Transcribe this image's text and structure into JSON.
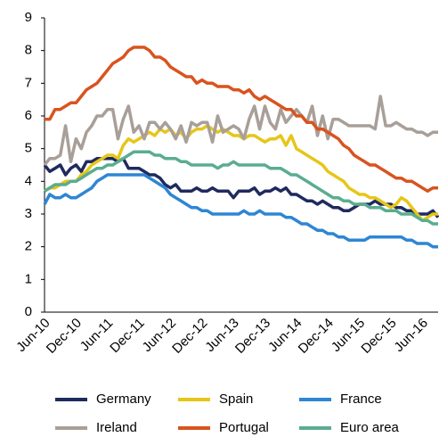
{
  "chart_data": {
    "type": "line",
    "categories": [
      "Jun-10",
      null,
      null,
      null,
      null,
      null,
      "Dec-10",
      null,
      null,
      null,
      null,
      null,
      "Jun-11",
      null,
      null,
      null,
      null,
      null,
      "Dec-11",
      null,
      null,
      null,
      null,
      null,
      "Jun-12",
      null,
      null,
      null,
      null,
      null,
      "Dec-12",
      null,
      null,
      null,
      null,
      null,
      "Jun-13",
      null,
      null,
      null,
      null,
      null,
      "Dec-13",
      null,
      null,
      null,
      null,
      null,
      "Jun-14",
      null,
      null,
      null,
      null,
      null,
      "Dec-14",
      null,
      null,
      null,
      null,
      null,
      "Jun-15",
      null,
      null,
      null,
      null,
      null,
      "Dec-15",
      null,
      null,
      null,
      null,
      null,
      "Jun-16",
      null,
      null,
      null
    ],
    "series": [
      {
        "name": "Germany",
        "color": "#1f2a5e",
        "values": [
          4.5,
          4.3,
          4.4,
          4.5,
          4.2,
          4.4,
          4.5,
          4.3,
          4.6,
          4.6,
          4.7,
          4.7,
          4.7,
          4.7,
          4.6,
          4.7,
          4.4,
          4.4,
          4.4,
          4.3,
          4.2,
          4.2,
          4.1,
          3.9,
          3.8,
          3.9,
          3.7,
          3.7,
          3.7,
          3.8,
          3.7,
          3.7,
          3.8,
          3.7,
          3.7,
          3.7,
          3.5,
          3.7,
          3.7,
          3.7,
          3.8,
          3.6,
          3.7,
          3.7,
          3.8,
          3.7,
          3.8,
          3.6,
          3.6,
          3.5,
          3.4,
          3.4,
          3.3,
          3.4,
          3.3,
          3.2,
          3.2,
          3.1,
          3.1,
          3.2,
          3.3,
          3.3,
          3.3,
          3.4,
          3.3,
          3.3,
          3.3,
          3.2,
          3.2,
          3.1,
          3.1,
          3.0,
          3.0,
          3.0,
          3.1,
          2.9
        ]
      },
      {
        "name": "Spain",
        "color": "#e6c619",
        "values": [
          3.7,
          3.8,
          3.8,
          3.9,
          4.0,
          4.0,
          4.0,
          4.2,
          4.3,
          4.5,
          4.6,
          4.7,
          4.8,
          4.8,
          4.7,
          5.1,
          5.3,
          5.2,
          5.3,
          5.4,
          5.5,
          5.4,
          5.6,
          5.5,
          5.6,
          5.4,
          5.5,
          5.3,
          5.5,
          5.6,
          5.6,
          5.7,
          5.6,
          5.5,
          5.6,
          5.5,
          5.4,
          5.4,
          5.3,
          5.4,
          5.4,
          5.3,
          5.2,
          5.3,
          5.3,
          5.4,
          5.1,
          5.4,
          5.0,
          4.9,
          4.8,
          4.7,
          4.6,
          4.5,
          4.3,
          4.2,
          4.1,
          4.0,
          3.8,
          3.7,
          3.6,
          3.6,
          3.5,
          3.5,
          3.4,
          3.3,
          3.2,
          3.3,
          3.5,
          3.4,
          3.2,
          3.0,
          2.8,
          2.9,
          3.0,
          3.0
        ]
      },
      {
        "name": "France",
        "color": "#2e86d4",
        "values": [
          3.3,
          3.6,
          3.5,
          3.5,
          3.6,
          3.5,
          3.5,
          3.6,
          3.7,
          3.8,
          4.0,
          4.1,
          4.2,
          4.2,
          4.2,
          4.2,
          4.2,
          4.2,
          4.2,
          4.2,
          4.1,
          4.0,
          3.9,
          3.8,
          3.6,
          3.5,
          3.4,
          3.3,
          3.2,
          3.2,
          3.1,
          3.1,
          3.0,
          3.0,
          3.0,
          3.0,
          3.0,
          3.0,
          3.1,
          3.0,
          3.0,
          3.1,
          3.0,
          3.0,
          3.0,
          3.0,
          2.9,
          2.9,
          2.8,
          2.7,
          2.7,
          2.6,
          2.5,
          2.5,
          2.4,
          2.4,
          2.3,
          2.3,
          2.2,
          2.2,
          2.2,
          2.2,
          2.3,
          2.3,
          2.3,
          2.3,
          2.3,
          2.3,
          2.3,
          2.2,
          2.2,
          2.1,
          2.1,
          2.1,
          2.0,
          2.0
        ]
      },
      {
        "name": "Ireland",
        "color": "#a89f98",
        "values": [
          4.5,
          4.7,
          4.7,
          4.8,
          5.7,
          4.6,
          5.3,
          5.0,
          5.5,
          5.7,
          6.0,
          6.0,
          6.2,
          6.2,
          5.3,
          5.9,
          6.3,
          5.5,
          5.7,
          5.3,
          5.8,
          5.8,
          5.6,
          5.8,
          5.6,
          5.3,
          5.7,
          5.2,
          5.8,
          5.7,
          5.8,
          5.8,
          5.2,
          6.0,
          5.5,
          5.6,
          5.7,
          5.6,
          5.3,
          5.9,
          6.3,
          5.6,
          6.3,
          5.8,
          5.6,
          6.2,
          5.8,
          6.0,
          6.2,
          6.0,
          5.8,
          6.3,
          5.4,
          6.0,
          5.3,
          5.9,
          5.9,
          5.8,
          5.7,
          5.7,
          5.7,
          5.7,
          5.7,
          5.6,
          6.6,
          5.7,
          5.7,
          5.8,
          5.7,
          5.6,
          5.6,
          5.5,
          5.5,
          5.4,
          5.5,
          5.5
        ]
      },
      {
        "name": "Portugal",
        "color": "#d9531e",
        "values": [
          5.9,
          5.9,
          6.2,
          6.2,
          6.3,
          6.4,
          6.4,
          6.6,
          6.8,
          6.9,
          7.0,
          7.2,
          7.4,
          7.6,
          7.7,
          7.8,
          8.0,
          8.1,
          8.1,
          8.1,
          8.0,
          7.8,
          7.8,
          7.7,
          7.5,
          7.4,
          7.3,
          7.2,
          7.2,
          7.0,
          7.1,
          7.0,
          7.0,
          6.9,
          6.9,
          6.9,
          6.8,
          6.8,
          6.7,
          6.8,
          6.6,
          6.5,
          6.6,
          6.5,
          6.4,
          6.3,
          6.2,
          6.2,
          6.0,
          6.0,
          5.8,
          5.8,
          5.6,
          5.6,
          5.5,
          5.4,
          5.3,
          5.1,
          5.0,
          4.8,
          4.7,
          4.6,
          4.5,
          4.5,
          4.4,
          4.3,
          4.2,
          4.1,
          4.1,
          4.0,
          4.0,
          3.9,
          3.8,
          3.7,
          3.8,
          3.8
        ]
      },
      {
        "name": "Euro area",
        "color": "#5aad8f",
        "values": [
          3.7,
          3.8,
          3.9,
          3.9,
          3.9,
          4.0,
          4.0,
          4.1,
          4.2,
          4.3,
          4.4,
          4.4,
          4.5,
          4.5,
          4.6,
          4.7,
          4.8,
          4.9,
          4.9,
          4.9,
          4.9,
          4.8,
          4.8,
          4.7,
          4.7,
          4.7,
          4.6,
          4.6,
          4.5,
          4.5,
          4.5,
          4.5,
          4.5,
          4.4,
          4.5,
          4.5,
          4.6,
          4.5,
          4.5,
          4.5,
          4.5,
          4.5,
          4.5,
          4.4,
          4.4,
          4.4,
          4.3,
          4.2,
          4.2,
          4.1,
          4.0,
          3.9,
          3.8,
          3.7,
          3.6,
          3.5,
          3.5,
          3.4,
          3.4,
          3.3,
          3.3,
          3.3,
          3.2,
          3.2,
          3.2,
          3.1,
          3.1,
          3.1,
          3.0,
          3.0,
          3.0,
          2.9,
          2.8,
          2.8,
          2.7,
          2.7
        ]
      }
    ],
    "ylim": [
      0,
      9
    ],
    "yticks": [
      0,
      1,
      2,
      3,
      4,
      5,
      6,
      7,
      8,
      9
    ],
    "grid": false,
    "legend": "bottom"
  }
}
